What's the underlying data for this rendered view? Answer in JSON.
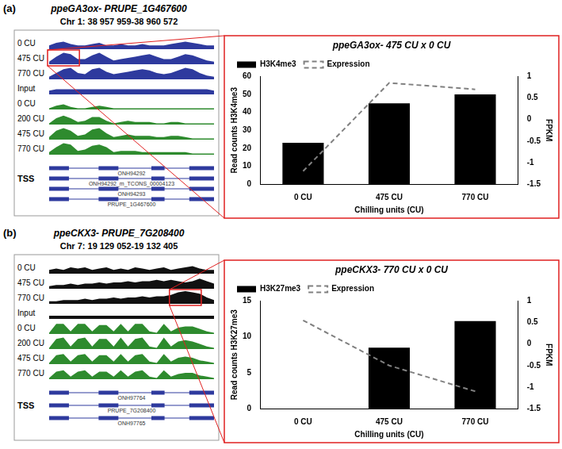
{
  "figure": [
    {
      "label": "(a)",
      "gene": "ppeGA3ox- PRUPE_1G467600",
      "location": "Chr 1: 38 957 959-38 960 572",
      "tracks": [
        {
          "name": "0 CU",
          "color": "#2e3a9e",
          "values": [
            0.3,
            0.5,
            0.6,
            0.4,
            0.3,
            0.3,
            0.4,
            0.5,
            0.3,
            0.3,
            0.4,
            0.3,
            0.3,
            0.4,
            0.3,
            0.3,
            0.3,
            0.4,
            0.5,
            0.6,
            0.5,
            0.4,
            0.3,
            0.3
          ]
        },
        {
          "name": "475 CU",
          "color": "#2e3a9e",
          "values": [
            0.2,
            0.6,
            0.9,
            0.8,
            0.4,
            0.4,
            0.7,
            0.9,
            0.6,
            0.3,
            0.4,
            0.5,
            0.6,
            0.7,
            0.8,
            0.6,
            0.4,
            0.4,
            0.6,
            0.8,
            0.7,
            0.5,
            0.3,
            0.2
          ]
        },
        {
          "name": "770 CU",
          "color": "#2e3a9e",
          "values": [
            0.2,
            0.5,
            0.8,
            0.9,
            0.5,
            0.4,
            0.8,
            0.9,
            0.6,
            0.4,
            0.5,
            0.6,
            0.7,
            0.8,
            0.7,
            0.5,
            0.4,
            0.5,
            0.7,
            0.9,
            0.8,
            0.5,
            0.3,
            0.2
          ]
        },
        {
          "name": "Input",
          "color": "#2e3a9e",
          "values": [
            0.3,
            0.4,
            0.4,
            0.4,
            0.4,
            0.4,
            0.4,
            0.4,
            0.4,
            0.4,
            0.4,
            0.4,
            0.4,
            0.4,
            0.4,
            0.4,
            0.4,
            0.4,
            0.4,
            0.4,
            0.4,
            0.4,
            0.4,
            0.3
          ]
        },
        {
          "name": "0 CU",
          "color": "#2e8b2e",
          "values": [
            0.1,
            0.3,
            0.4,
            0.2,
            0.1,
            0.1,
            0.2,
            0.3,
            0.2,
            0.1,
            0.1,
            0.1,
            0.1,
            0.1,
            0.1,
            0.1,
            0.1,
            0.1,
            0.1,
            0.1,
            0.1,
            0.1,
            0.1,
            0.1
          ]
        },
        {
          "name": "200 CU",
          "color": "#2e8b2e",
          "values": [
            0.1,
            0.5,
            0.7,
            0.5,
            0.2,
            0.3,
            0.6,
            0.6,
            0.3,
            0.1,
            0.2,
            0.3,
            0.2,
            0.2,
            0.2,
            0.1,
            0.1,
            0.2,
            0.2,
            0.1,
            0.1,
            0.1,
            0.1,
            0.1
          ]
        },
        {
          "name": "475 CU",
          "color": "#2e8b2e",
          "values": [
            0.2,
            0.7,
            0.9,
            0.7,
            0.3,
            0.4,
            0.8,
            0.9,
            0.5,
            0.2,
            0.3,
            0.4,
            0.3,
            0.3,
            0.3,
            0.2,
            0.2,
            0.3,
            0.3,
            0.2,
            0.1,
            0.1,
            0.1,
            0.1
          ]
        },
        {
          "name": "770 CU",
          "color": "#2e8b2e",
          "values": [
            0.2,
            0.6,
            0.9,
            0.8,
            0.3,
            0.4,
            0.7,
            0.8,
            0.6,
            0.2,
            0.3,
            0.3,
            0.3,
            0.2,
            0.2,
            0.2,
            0.2,
            0.2,
            0.2,
            0.2,
            0.1,
            0.1,
            0.1,
            0.1
          ]
        }
      ],
      "highlight": {
        "track": 1,
        "from": 0,
        "to": 4
      },
      "gene_models": [
        "ONH94292",
        "ONH94292_m_TCONS_00004123",
        "ONH94293",
        "PRUPE_1G467600"
      ],
      "tss": "TSS"
    },
    {
      "label": "(b)",
      "gene": "ppeCKX3- PRUPE_7G208400",
      "location": "Chr 7: 19 129 052-19 132 405",
      "tracks": [
        {
          "name": "0 CU",
          "color": "#111111",
          "values": [
            0.3,
            0.4,
            0.3,
            0.5,
            0.4,
            0.5,
            0.3,
            0.4,
            0.5,
            0.3,
            0.4,
            0.3,
            0.5,
            0.4,
            0.3,
            0.4,
            0.5,
            0.3,
            0.4,
            0.5,
            0.6,
            0.4,
            0.3,
            0.3
          ]
        },
        {
          "name": "475 CU",
          "color": "#111111",
          "values": [
            0.2,
            0.3,
            0.3,
            0.4,
            0.3,
            0.4,
            0.4,
            0.5,
            0.4,
            0.5,
            0.5,
            0.6,
            0.5,
            0.6,
            0.6,
            0.7,
            0.6,
            0.7,
            0.6,
            0.5,
            0.6,
            0.8,
            0.6,
            0.4
          ]
        },
        {
          "name": "770 CU",
          "color": "#111111",
          "values": [
            0.2,
            0.2,
            0.3,
            0.3,
            0.3,
            0.4,
            0.3,
            0.4,
            0.4,
            0.5,
            0.4,
            0.5,
            0.5,
            0.6,
            0.5,
            0.6,
            0.6,
            0.7,
            0.9,
            1.0,
            0.9,
            0.8,
            0.5,
            0.3
          ]
        },
        {
          "name": "Input",
          "color": "#111111",
          "values": [
            0.25,
            0.25,
            0.25,
            0.25,
            0.25,
            0.25,
            0.25,
            0.25,
            0.25,
            0.25,
            0.25,
            0.25,
            0.25,
            0.25,
            0.25,
            0.25,
            0.25,
            0.25,
            0.25,
            0.25,
            0.25,
            0.25,
            0.25,
            0.25
          ]
        },
        {
          "name": "0 CU",
          "color": "#2e8b2e",
          "values": [
            0.1,
            0.8,
            0.8,
            0.2,
            0.8,
            0.8,
            0.2,
            0.7,
            0.7,
            0.2,
            0.8,
            0.2,
            0.8,
            0.8,
            0.2,
            0.1,
            0.8,
            0.2,
            0.5,
            0.6,
            0.6,
            0.4,
            0.2,
            0.1
          ]
        },
        {
          "name": "200 CU",
          "color": "#2e8b2e",
          "values": [
            0.1,
            0.8,
            0.9,
            0.2,
            0.8,
            0.9,
            0.2,
            0.8,
            0.8,
            0.2,
            0.9,
            0.2,
            0.8,
            0.9,
            0.2,
            0.1,
            0.9,
            0.2,
            0.6,
            0.7,
            0.6,
            0.4,
            0.2,
            0.1
          ]
        },
        {
          "name": "475 CU",
          "color": "#2e8b2e",
          "values": [
            0.1,
            0.7,
            0.8,
            0.2,
            0.7,
            0.8,
            0.2,
            0.7,
            0.7,
            0.2,
            0.8,
            0.2,
            0.7,
            0.8,
            0.2,
            0.1,
            0.8,
            0.2,
            0.5,
            0.6,
            0.5,
            0.3,
            0.2,
            0.1
          ]
        },
        {
          "name": "770 CU",
          "color": "#2e8b2e",
          "values": [
            0.1,
            0.6,
            0.7,
            0.2,
            0.6,
            0.7,
            0.2,
            0.6,
            0.6,
            0.2,
            0.7,
            0.2,
            0.6,
            0.7,
            0.2,
            0.1,
            0.7,
            0.2,
            0.4,
            0.5,
            0.5,
            0.3,
            0.2,
            0.1
          ]
        }
      ],
      "highlight": {
        "track": 2,
        "from": 17,
        "to": 21
      },
      "gene_models": [
        "ONH97764",
        "PRUPE_7G208400",
        "ONH97765"
      ],
      "tss": "TSS"
    }
  ],
  "chart_data": [
    {
      "type": "bar",
      "title": "ppeGA3ox- 475 CU x 0 CU",
      "categories": [
        "0 CU",
        "475 CU",
        "770 CU"
      ],
      "series": [
        {
          "name": "H3K4me3",
          "type": "bar",
          "color": "#000000",
          "values": [
            23,
            45,
            50
          ]
        },
        {
          "name": "Expression",
          "type": "line",
          "color": "#808080",
          "line_style": "dashed",
          "axis": "y2",
          "values": [
            -1.2,
            0.85,
            0.7
          ]
        }
      ],
      "xlabel": "Chilling units (CU)",
      "ylabel": "Read counts H3K4me3",
      "y2label": "FPKM",
      "ylim": [
        0,
        60
      ],
      "yticks": [
        0,
        10,
        20,
        30,
        40,
        50,
        60
      ],
      "y2lim": [
        -1.5,
        1
      ],
      "y2ticks": [
        -1.5,
        -1,
        -0.5,
        0,
        0.5,
        1
      ],
      "legend": "upper left",
      "grid": false
    },
    {
      "type": "bar",
      "title": "ppeCKX3- 770 CU x 0 CU",
      "categories": [
        "0 CU",
        "475 CU",
        "770 CU"
      ],
      "series": [
        {
          "name": "H3K27me3",
          "type": "bar",
          "color": "#000000",
          "values": [
            0,
            8.5,
            12.2
          ]
        },
        {
          "name": "Expression",
          "type": "line",
          "color": "#808080",
          "line_style": "dashed",
          "axis": "y2",
          "values": [
            0.55,
            -0.5,
            -1.1
          ]
        }
      ],
      "xlabel": "Chilling units (CU)",
      "ylabel": "Read counts H3K27me3",
      "y2label": "FPKM",
      "ylim": [
        0,
        15
      ],
      "yticks": [
        0,
        5,
        10,
        15
      ],
      "y2lim": [
        -1.5,
        1
      ],
      "y2ticks": [
        -1.5,
        -1,
        -0.5,
        0,
        0.5,
        1
      ],
      "legend": "upper left",
      "grid": false
    }
  ]
}
